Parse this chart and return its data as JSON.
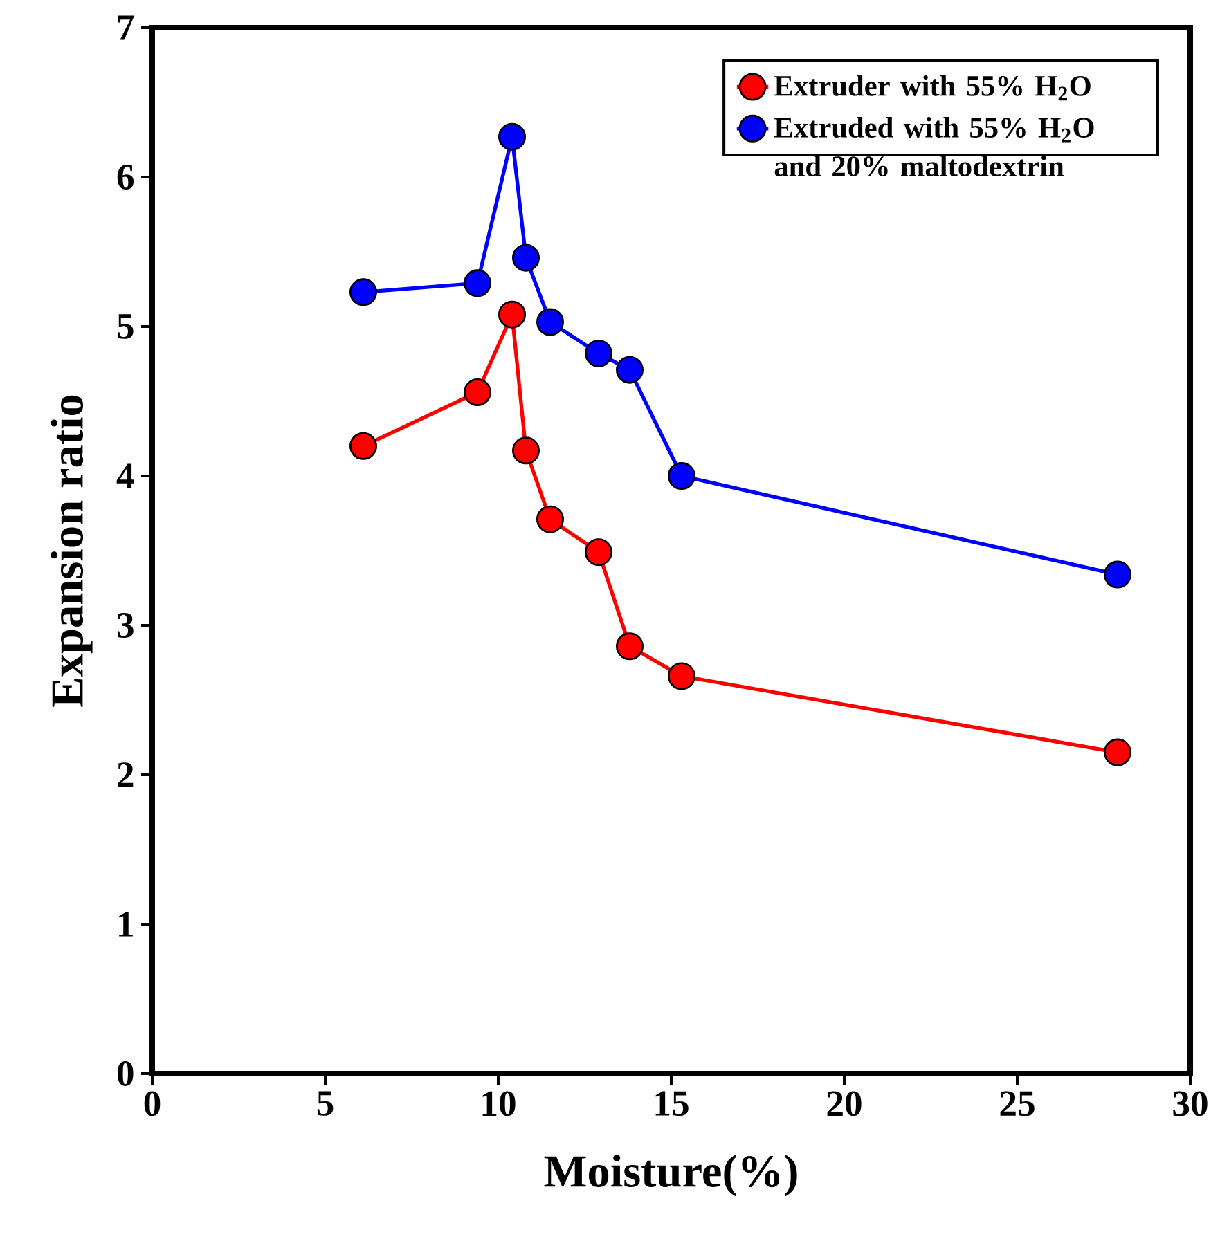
{
  "chart_data": {
    "type": "line",
    "xlabel": "Moisture(%)",
    "ylabel": "Expansion ratio",
    "xlim": [
      0,
      30
    ],
    "ylim": [
      0,
      7
    ],
    "xticks": [
      0,
      5,
      10,
      15,
      20,
      25,
      30
    ],
    "yticks": [
      0,
      1,
      2,
      3,
      4,
      5,
      6,
      7
    ],
    "grid": false,
    "legend": "top right",
    "marker": "circle",
    "line_style": "solid",
    "series": [
      {
        "name": "Extruder with 55% H$_{2}$O",
        "color": "#ff0000",
        "x": [
          6.1,
          9.4,
          10.4,
          10.8,
          11.5,
          12.9,
          13.8,
          15.3,
          27.9
        ],
        "values": [
          4.2,
          4.56,
          5.08,
          4.17,
          3.71,
          3.49,
          2.86,
          2.66,
          2.15
        ]
      },
      {
        "name": "Extruded with 55% H$_{2}$O and 20% maltodextrin",
        "color": "#0000ff",
        "x": [
          6.1,
          9.4,
          10.4,
          10.8,
          11.5,
          12.9,
          13.8,
          15.3,
          27.9
        ],
        "values": [
          5.23,
          5.29,
          6.27,
          5.46,
          5.03,
          4.82,
          4.71,
          4.0,
          3.34
        ]
      }
    ]
  }
}
